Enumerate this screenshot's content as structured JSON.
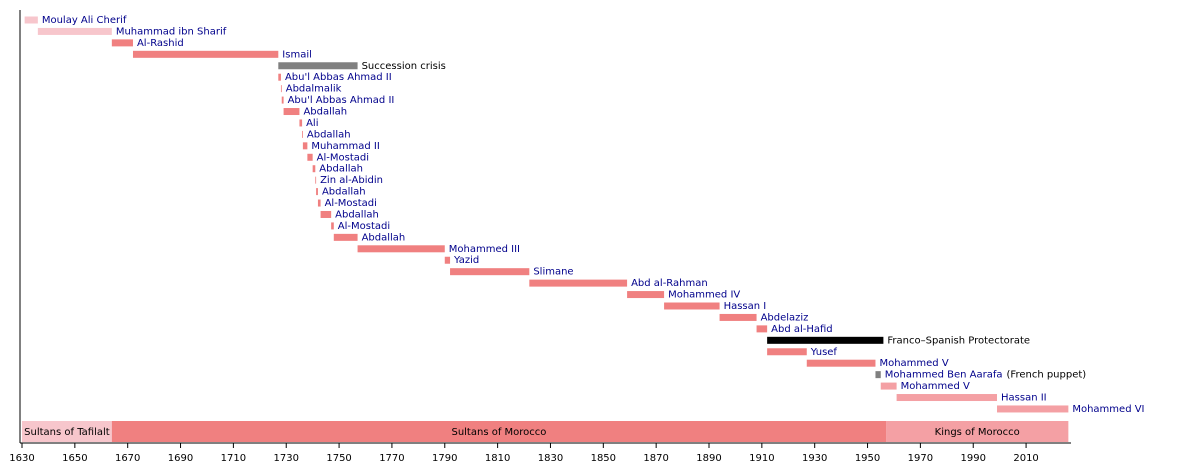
{
  "chart_data": {
    "type": "timeline",
    "xlim": [
      1630,
      2027
    ],
    "xticks": [
      1630,
      1650,
      1670,
      1690,
      1710,
      1730,
      1750,
      1770,
      1790,
      1810,
      1830,
      1850,
      1870,
      1890,
      1910,
      1930,
      1950,
      1970,
      1990,
      2010
    ],
    "bars": [
      {
        "label": "Moulay Ali Cherif",
        "start": 1631,
        "end": 1636,
        "color": "#f7c6cc",
        "label_color": "#00008b"
      },
      {
        "label": "Muhammad ibn Sharif",
        "start": 1636,
        "end": 1664,
        "color": "#f7c6cc",
        "label_color": "#00008b"
      },
      {
        "label": "Al-Rashid",
        "start": 1664,
        "end": 1672,
        "color": "#f08080",
        "label_color": "#00008b"
      },
      {
        "label": "Ismail",
        "start": 1672,
        "end": 1727,
        "color": "#f08080",
        "label_color": "#00008b"
      },
      {
        "label": "Succession crisis",
        "start": 1727,
        "end": 1757,
        "color": "#808080",
        "label_color": "#000000"
      },
      {
        "label": "Abu'l Abbas Ahmad II",
        "start": 1727,
        "end": 1728,
        "color": "#f08080",
        "label_color": "#00008b"
      },
      {
        "label": "Abdalmalik",
        "start": 1728,
        "end": 1728.3,
        "color": "#f08080",
        "label_color": "#00008b"
      },
      {
        "label": "Abu'l Abbas Ahmad II",
        "start": 1728.3,
        "end": 1729,
        "color": "#f08080",
        "label_color": "#00008b"
      },
      {
        "label": "Abdallah",
        "start": 1729,
        "end": 1735,
        "color": "#f08080",
        "label_color": "#00008b"
      },
      {
        "label": "Ali",
        "start": 1735,
        "end": 1736,
        "color": "#f08080",
        "label_color": "#00008b"
      },
      {
        "label": "Abdallah",
        "start": 1736,
        "end": 1736.3,
        "color": "#f08080",
        "label_color": "#00008b"
      },
      {
        "label": "Muhammad II",
        "start": 1736.3,
        "end": 1738,
        "color": "#f08080",
        "label_color": "#00008b"
      },
      {
        "label": "Al-Mostadi",
        "start": 1738,
        "end": 1740,
        "color": "#f08080",
        "label_color": "#00008b"
      },
      {
        "label": "Abdallah",
        "start": 1740,
        "end": 1741,
        "color": "#f08080",
        "label_color": "#00008b"
      },
      {
        "label": "Zin al-Abidin",
        "start": 1741,
        "end": 1741.3,
        "color": "#f08080",
        "label_color": "#00008b"
      },
      {
        "label": "Abdallah",
        "start": 1741.3,
        "end": 1742,
        "color": "#f08080",
        "label_color": "#00008b"
      },
      {
        "label": "Al-Mostadi",
        "start": 1742,
        "end": 1743,
        "color": "#f08080",
        "label_color": "#00008b"
      },
      {
        "label": "Abdallah",
        "start": 1743,
        "end": 1747,
        "color": "#f08080",
        "label_color": "#00008b"
      },
      {
        "label": "Al-Mostadi",
        "start": 1747,
        "end": 1748,
        "color": "#f08080",
        "label_color": "#00008b"
      },
      {
        "label": "Abdallah",
        "start": 1748,
        "end": 1757,
        "color": "#f08080",
        "label_color": "#00008b"
      },
      {
        "label": "Mohammed III",
        "start": 1757,
        "end": 1790,
        "color": "#f08080",
        "label_color": "#00008b"
      },
      {
        "label": "Yazid",
        "start": 1790,
        "end": 1792,
        "color": "#f08080",
        "label_color": "#00008b"
      },
      {
        "label": "Slimane",
        "start": 1792,
        "end": 1822,
        "color": "#f08080",
        "label_color": "#00008b"
      },
      {
        "label": "Abd al-Rahman",
        "start": 1822,
        "end": 1859,
        "color": "#f08080",
        "label_color": "#00008b"
      },
      {
        "label": "Mohammed IV",
        "start": 1859,
        "end": 1873,
        "color": "#f08080",
        "label_color": "#00008b"
      },
      {
        "label": "Hassan I",
        "start": 1873,
        "end": 1894,
        "color": "#f08080",
        "label_color": "#00008b"
      },
      {
        "label": "Abdelaziz",
        "start": 1894,
        "end": 1908,
        "color": "#f08080",
        "label_color": "#00008b"
      },
      {
        "label": "Abd al-Hafid",
        "start": 1908,
        "end": 1912,
        "color": "#f08080",
        "label_color": "#00008b"
      },
      {
        "label": "Franco–Spanish Protectorate",
        "start": 1912,
        "end": 1956,
        "color": "#000000",
        "label_color": "#000000"
      },
      {
        "label": "Yusef",
        "start": 1912,
        "end": 1927,
        "color": "#f08080",
        "label_color": "#00008b"
      },
      {
        "label": "Mohammed V",
        "start": 1927,
        "end": 1953,
        "color": "#f08080",
        "label_color": "#00008b"
      },
      {
        "label": "Mohammed Ben Aarafa",
        "note": "(French puppet)",
        "start": 1953,
        "end": 1955,
        "color": "#808080",
        "label_color": "#00008b"
      },
      {
        "label": "Mohammed V",
        "start": 1955,
        "end": 1961,
        "color": "#f4a0a4",
        "label_color": "#00008b"
      },
      {
        "label": "Hassan II",
        "start": 1961,
        "end": 1999,
        "color": "#f4a0a4",
        "label_color": "#00008b"
      },
      {
        "label": "Mohammed VI",
        "start": 1999,
        "end": 2026,
        "color": "#f4a0a4",
        "label_color": "#00008b"
      }
    ],
    "eras": [
      {
        "label": "Sultans of Tafilalt",
        "start": 1630,
        "end": 1664,
        "color": "#f7c6cc"
      },
      {
        "label": "Sultans of Morocco",
        "start": 1664,
        "end": 1957,
        "color": "#f08080"
      },
      {
        "label": "Kings of Morocco",
        "start": 1957,
        "end": 2026,
        "color": "#f4a0a4"
      }
    ]
  }
}
